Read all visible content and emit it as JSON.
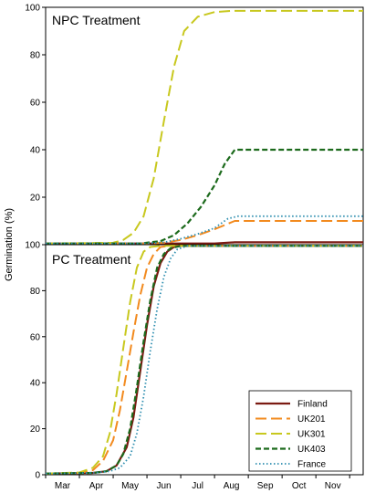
{
  "chart_data": {
    "type": "line",
    "ylabel": "Germination (%)",
    "xlabel": "",
    "month_labels": [
      "Mar",
      "Apr",
      "May",
      "Jun",
      "Jul",
      "Aug",
      "Sep",
      "Oct",
      "Nov"
    ],
    "y_ticks": [
      0,
      20,
      40,
      60,
      80,
      100
    ],
    "ylim": [
      0,
      100
    ],
    "xlim": [
      0,
      9.4
    ],
    "legend": {
      "placement": "bottom-right of lower panel",
      "entries": [
        {
          "name": "Finland",
          "color": "#7b1a12",
          "dash": "solid"
        },
        {
          "name": "UK201",
          "color": "#f28a1e",
          "dash": "long-dash"
        },
        {
          "name": "UK301",
          "color": "#c8c81e",
          "dash": "long-dash"
        },
        {
          "name": "UK403",
          "color": "#1c6a1c",
          "dash": "dash"
        },
        {
          "name": "France",
          "color": "#2f8fb0",
          "dash": "dotted"
        }
      ]
    },
    "panels": [
      {
        "title": "NPC Treatment",
        "series": [
          {
            "name": "Finland",
            "x": [
              0,
              5.0,
              5.6,
              9.4
            ],
            "values": [
              0.5,
              0.5,
              1,
              1
            ]
          },
          {
            "name": "UK201",
            "x": [
              0,
              2.9,
              3.5,
              4.0,
              4.5,
              5.0,
              5.6,
              9.4
            ],
            "values": [
              0.5,
              0.5,
              0.8,
              2,
              4,
              6.5,
              10,
              10
            ]
          },
          {
            "name": "UK301",
            "x": [
              0,
              2.0,
              2.3,
              2.6,
              2.9,
              3.2,
              3.5,
              3.8,
              4.1,
              4.5,
              5.0,
              5.5,
              6.0,
              9.4
            ],
            "values": [
              0.5,
              0.8,
              2,
              5,
              12,
              28,
              52,
              75,
              90,
              96,
              98,
              98.5,
              98.5,
              98.5
            ]
          },
          {
            "name": "UK403",
            "x": [
              0,
              2.8,
              3.4,
              3.8,
              4.2,
              4.6,
              5.0,
              5.3,
              5.6,
              6.0,
              9.4
            ],
            "values": [
              0.5,
              0.5,
              1.5,
              4,
              9,
              16,
              25,
              34,
              40,
              40,
              40
            ]
          },
          {
            "name": "France",
            "x": [
              0,
              2.9,
              3.5,
              4.0,
              4.5,
              5.0,
              5.4,
              5.7,
              9.4
            ],
            "values": [
              0.5,
              0.5,
              1,
              2.5,
              4.5,
              7,
              11,
              12,
              12
            ]
          }
        ]
      },
      {
        "title": "PC Treatment",
        "series": [
          {
            "name": "Finland",
            "x": [
              0,
              1.4,
              1.8,
              2.1,
              2.4,
              2.6,
              2.8,
              3.0,
              3.2,
              3.4,
              3.6,
              3.8,
              4.0,
              4.3,
              9.4
            ],
            "values": [
              0.5,
              0.8,
              1.5,
              4,
              12,
              25,
              45,
              65,
              82,
              92,
              97,
              99,
              99.5,
              99.5,
              99.5
            ]
          },
          {
            "name": "UK201",
            "x": [
              0,
              1.0,
              1.4,
              1.7,
              2.0,
              2.2,
              2.4,
              2.6,
              2.8,
              3.0,
              3.2,
              3.4,
              3.7,
              4.2,
              9.4
            ],
            "values": [
              0.5,
              0.8,
              2,
              6,
              15,
              28,
              45,
              62,
              78,
              90,
              96,
              99,
              99.5,
              99.5,
              99.5
            ]
          },
          {
            "name": "UK301",
            "x": [
              0,
              1.0,
              1.4,
              1.7,
              1.9,
              2.1,
              2.3,
              2.5,
              2.7,
              2.9,
              3.1,
              3.4,
              9.4
            ],
            "values": [
              0.5,
              1,
              3,
              8,
              18,
              35,
              55,
              75,
              90,
              97,
              99,
              99.5,
              99.5
            ]
          },
          {
            "name": "UK403",
            "x": [
              0,
              1.4,
              1.8,
              2.1,
              2.3,
              2.5,
              2.7,
              2.9,
              3.1,
              3.3,
              3.5,
              3.7,
              4.0,
              4.4,
              9.4
            ],
            "values": [
              0.5,
              0.8,
              1.5,
              4,
              9,
              20,
              38,
              58,
              76,
              90,
              96,
              98.5,
              99.5,
              99.5,
              99.5
            ]
          },
          {
            "name": "France",
            "x": [
              0,
              1.4,
              1.9,
              2.2,
              2.5,
              2.7,
              2.9,
              3.1,
              3.3,
              3.5,
              3.7,
              3.9,
              4.2,
              4.6,
              9.4
            ],
            "values": [
              0.5,
              0.8,
              1.5,
              3,
              8,
              18,
              34,
              54,
              72,
              86,
              94,
              98,
              99.5,
              99.5,
              99.5
            ]
          }
        ]
      }
    ]
  }
}
